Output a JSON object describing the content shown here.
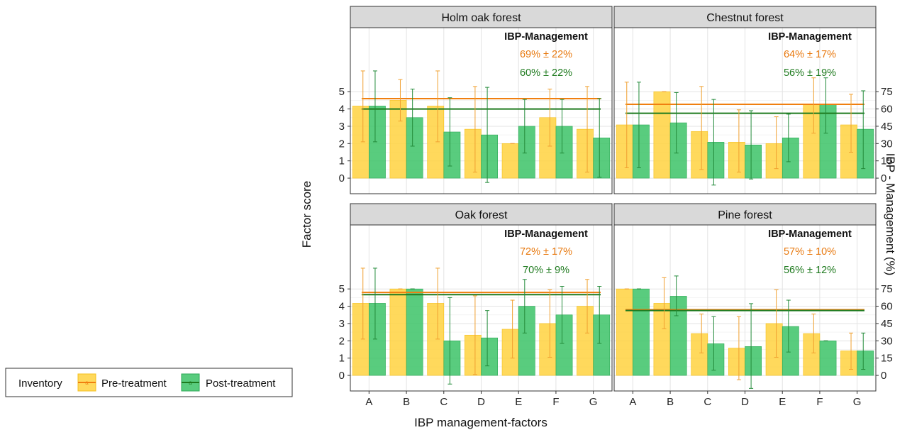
{
  "chart_data": {
    "type": "bar",
    "categories": [
      "A",
      "B",
      "C",
      "D",
      "E",
      "F",
      "G"
    ],
    "xlabel": "IBP management-factors",
    "ylabel": "Factor score",
    "y2label": "IBP - Management (%)",
    "yticks": [
      0,
      1,
      2,
      3,
      4,
      5
    ],
    "y2ticks": [
      0,
      15,
      30,
      45,
      60,
      75
    ],
    "ylim": [
      -0.9,
      8.7
    ],
    "legend": {
      "title": "Inventory",
      "position": "left",
      "items": [
        {
          "name": "Pre-treatment",
          "color": "#FFD23F",
          "line_color": "#F07F10"
        },
        {
          "name": "Post-treatment",
          "color": "#3CC367",
          "line_color": "#1E7A1E"
        }
      ]
    },
    "annotation_title": "IBP-Management",
    "grid": true,
    "panels": [
      {
        "title": "Holm oak forest",
        "ibp_pre": "69% ± 22%",
        "ibp_post": "60% ± 22%",
        "line_pre": 4.6,
        "line_post": 4.0,
        "series": [
          {
            "name": "Pre-treatment",
            "values": [
              4.17,
              4.5,
              4.17,
              2.83,
              2.0,
              3.5,
              2.83
            ],
            "err_low": [
              2.1,
              3.3,
              2.1,
              0.35,
              2.0,
              1.85,
              0.35
            ],
            "err_high": [
              6.2,
              5.7,
              6.2,
              5.3,
              2.0,
              5.15,
              5.3
            ]
          },
          {
            "name": "Post-treatment",
            "values": [
              4.17,
              3.5,
              2.67,
              2.5,
              3.0,
              3.0,
              2.33
            ],
            "err_low": [
              2.1,
              1.85,
              0.7,
              -0.25,
              1.45,
              1.45,
              0.05
            ],
            "err_high": [
              6.2,
              5.15,
              4.65,
              5.25,
              4.55,
              4.55,
              4.6
            ]
          }
        ]
      },
      {
        "title": "Chestnut forest",
        "ibp_pre": "64% ± 17%",
        "ibp_post": "56% ± 19%",
        "line_pre": 4.27,
        "line_post": 3.75,
        "series": [
          {
            "name": "Pre-treatment",
            "values": [
              3.08,
              5.0,
              2.7,
              2.08,
              2.0,
              4.25,
              3.08
            ],
            "err_low": [
              0.6,
              5.0,
              0.5,
              0.35,
              0.55,
              2.6,
              1.5
            ],
            "err_high": [
              5.55,
              5.0,
              5.3,
              3.95,
              3.55,
              5.8,
              4.85
            ]
          },
          {
            "name": "Post-treatment",
            "values": [
              3.08,
              3.2,
              2.08,
              1.92,
              2.33,
              4.25,
              2.83
            ],
            "err_low": [
              0.6,
              1.45,
              -0.4,
              -0.05,
              0.95,
              2.6,
              0.55
            ],
            "err_high": [
              5.55,
              4.95,
              4.55,
              3.9,
              3.7,
              5.8,
              5.05
            ]
          }
        ]
      },
      {
        "title": "Oak forest",
        "ibp_pre": "72% ± 17%",
        "ibp_post": "70% ± 9%",
        "line_pre": 4.8,
        "line_post": 4.67,
        "series": [
          {
            "name": "Pre-treatment",
            "values": [
              4.17,
              5.0,
              4.17,
              2.33,
              2.67,
              3.0,
              4.0
            ],
            "err_low": [
              2.1,
              5.0,
              2.1,
              0.05,
              1.0,
              1.05,
              2.45
            ],
            "err_high": [
              6.2,
              5.0,
              6.2,
              4.6,
              4.35,
              4.95,
              5.55
            ]
          },
          {
            "name": "Post-treatment",
            "values": [
              4.17,
              5.0,
              2.0,
              2.17,
              4.0,
              3.5,
              3.5
            ],
            "err_low": [
              2.1,
              5.0,
              -0.5,
              0.55,
              2.45,
              1.85,
              1.85
            ],
            "err_high": [
              6.2,
              5.0,
              4.5,
              3.75,
              5.55,
              5.15,
              5.15
            ]
          }
        ]
      },
      {
        "title": "Pine forest",
        "ibp_pre": "57% ± 10%",
        "ibp_post": "56% ± 12%",
        "line_pre": 3.8,
        "line_post": 3.75,
        "series": [
          {
            "name": "Pre-treatment",
            "values": [
              5.0,
              4.17,
              2.42,
              1.58,
              3.0,
              2.42,
              1.42
            ],
            "err_low": [
              5.0,
              2.7,
              1.3,
              -0.25,
              1.05,
              1.3,
              0.35
            ],
            "err_high": [
              5.0,
              5.65,
              3.55,
              3.4,
              4.95,
              3.55,
              2.45
            ]
          },
          {
            "name": "Post-treatment",
            "values": [
              5.0,
              4.58,
              1.83,
              1.67,
              2.83,
              2.0,
              1.42
            ],
            "err_low": [
              5.0,
              3.45,
              0.3,
              -0.75,
              1.35,
              2.0,
              0.35
            ],
            "err_high": [
              5.0,
              5.75,
              3.4,
              4.15,
              4.35,
              2.0,
              2.45
            ]
          }
        ]
      }
    ]
  }
}
